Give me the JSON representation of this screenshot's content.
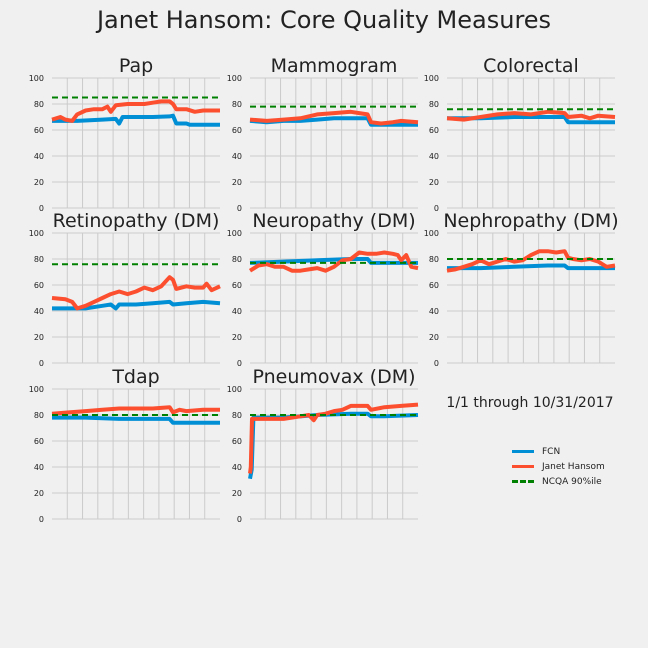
{
  "title": "Janet Hansom: Core Quality Measures",
  "date_range": "1/1 through 10/31/2017",
  "colors": {
    "fcn": "#008fd5",
    "provider": "#fc4f30",
    "ncqa": "#008000",
    "grid": "#cbcbcb",
    "bg": "#f0f0f0"
  },
  "legend": [
    {
      "label": "FCN",
      "color": "#008fd5",
      "style": "solid"
    },
    {
      "label": "Janet Hansom",
      "color": "#fc4f30",
      "style": "solid"
    },
    {
      "label": "NCQA 90%ile",
      "color": "#008000",
      "style": "dashed"
    }
  ],
  "chart_data": [
    {
      "type": "line",
      "title": "Pap",
      "ylim": [
        0,
        100
      ],
      "yticks": [
        0,
        20,
        40,
        60,
        80,
        100
      ],
      "ncqa": 85,
      "series": [
        {
          "name": "FCN",
          "points": [
            [
              0,
              67
            ],
            [
              0.15,
              67
            ],
            [
              0.3,
              68
            ],
            [
              0.38,
              68.5
            ],
            [
              0.4,
              65
            ],
            [
              0.42,
              70
            ],
            [
              0.5,
              70
            ],
            [
              0.6,
              70
            ],
            [
              0.7,
              70.5
            ],
            [
              0.72,
              71
            ],
            [
              0.74,
              65
            ],
            [
              0.8,
              65
            ],
            [
              0.82,
              64
            ],
            [
              1,
              64
            ]
          ]
        },
        {
          "name": "Janet Hansom",
          "points": [
            [
              0,
              68
            ],
            [
              0.05,
              70
            ],
            [
              0.08,
              68
            ],
            [
              0.12,
              67
            ],
            [
              0.15,
              72
            ],
            [
              0.2,
              75
            ],
            [
              0.25,
              76
            ],
            [
              0.3,
              76
            ],
            [
              0.33,
              78
            ],
            [
              0.35,
              74
            ],
            [
              0.38,
              79
            ],
            [
              0.45,
              80
            ],
            [
              0.55,
              80
            ],
            [
              0.6,
              81
            ],
            [
              0.65,
              82
            ],
            [
              0.7,
              82
            ],
            [
              0.72,
              80
            ],
            [
              0.74,
              76
            ],
            [
              0.8,
              76
            ],
            [
              0.85,
              74
            ],
            [
              0.9,
              75
            ],
            [
              1,
              75
            ]
          ]
        }
      ]
    },
    {
      "type": "line",
      "title": "Mammogram",
      "ylim": [
        0,
        100
      ],
      "yticks": [
        0,
        20,
        40,
        60,
        80,
        100
      ],
      "ncqa": 78,
      "series": [
        {
          "name": "FCN",
          "points": [
            [
              0,
              67
            ],
            [
              0.1,
              66
            ],
            [
              0.2,
              67
            ],
            [
              0.3,
              67
            ],
            [
              0.4,
              68
            ],
            [
              0.5,
              69
            ],
            [
              0.6,
              69
            ],
            [
              0.7,
              69
            ],
            [
              0.72,
              64
            ],
            [
              0.8,
              64
            ],
            [
              1,
              64
            ]
          ]
        },
        {
          "name": "Janet Hansom",
          "points": [
            [
              0,
              68
            ],
            [
              0.1,
              67
            ],
            [
              0.2,
              68
            ],
            [
              0.3,
              69
            ],
            [
              0.4,
              72
            ],
            [
              0.5,
              73
            ],
            [
              0.6,
              74
            ],
            [
              0.65,
              73
            ],
            [
              0.7,
              72
            ],
            [
              0.72,
              66
            ],
            [
              0.78,
              65
            ],
            [
              0.85,
              66
            ],
            [
              0.9,
              67
            ],
            [
              1,
              66
            ]
          ]
        }
      ]
    },
    {
      "type": "line",
      "title": "Colorectal",
      "ylim": [
        0,
        100
      ],
      "yticks": [
        0,
        20,
        40,
        60,
        80,
        100
      ],
      "ncqa": 76,
      "series": [
        {
          "name": "FCN",
          "points": [
            [
              0,
              69
            ],
            [
              0.2,
              69
            ],
            [
              0.4,
              70
            ],
            [
              0.6,
              70
            ],
            [
              0.7,
              70
            ],
            [
              0.72,
              66
            ],
            [
              0.8,
              66
            ],
            [
              1,
              66
            ]
          ]
        },
        {
          "name": "Janet Hansom",
          "points": [
            [
              0,
              69
            ],
            [
              0.1,
              68
            ],
            [
              0.2,
              70
            ],
            [
              0.3,
              72
            ],
            [
              0.4,
              73
            ],
            [
              0.5,
              72
            ],
            [
              0.6,
              74
            ],
            [
              0.7,
              73
            ],
            [
              0.72,
              70
            ],
            [
              0.8,
              71
            ],
            [
              0.85,
              69
            ],
            [
              0.9,
              71
            ],
            [
              1,
              70
            ]
          ]
        }
      ]
    },
    {
      "type": "line",
      "title": "Retinopathy (DM)",
      "ylim": [
        0,
        100
      ],
      "yticks": [
        0,
        20,
        40,
        60,
        80,
        100
      ],
      "ncqa": 76,
      "series": [
        {
          "name": "FCN",
          "points": [
            [
              0,
              42
            ],
            [
              0.1,
              42
            ],
            [
              0.2,
              42
            ],
            [
              0.3,
              44
            ],
            [
              0.35,
              45
            ],
            [
              0.38,
              42
            ],
            [
              0.4,
              45
            ],
            [
              0.5,
              45
            ],
            [
              0.6,
              46
            ],
            [
              0.7,
              47
            ],
            [
              0.72,
              45
            ],
            [
              0.8,
              46
            ],
            [
              0.9,
              47
            ],
            [
              1,
              46
            ]
          ]
        },
        {
          "name": "Janet Hansom",
          "points": [
            [
              0,
              50
            ],
            [
              0.08,
              49
            ],
            [
              0.12,
              47
            ],
            [
              0.15,
              42
            ],
            [
              0.2,
              44
            ],
            [
              0.25,
              47
            ],
            [
              0.3,
              50
            ],
            [
              0.35,
              53
            ],
            [
              0.4,
              55
            ],
            [
              0.45,
              53
            ],
            [
              0.5,
              55
            ],
            [
              0.55,
              58
            ],
            [
              0.6,
              56
            ],
            [
              0.65,
              59
            ],
            [
              0.7,
              66
            ],
            [
              0.72,
              64
            ],
            [
              0.74,
              57
            ],
            [
              0.8,
              59
            ],
            [
              0.85,
              58
            ],
            [
              0.9,
              58
            ],
            [
              0.92,
              61
            ],
            [
              0.95,
              56
            ],
            [
              1,
              59
            ]
          ]
        }
      ]
    },
    {
      "type": "line",
      "title": "Neuropathy (DM)",
      "ylim": [
        0,
        100
      ],
      "yticks": [
        0,
        20,
        40,
        60,
        80,
        100
      ],
      "ncqa": 77,
      "series": [
        {
          "name": "FCN",
          "points": [
            [
              0,
              77
            ],
            [
              0.2,
              78
            ],
            [
              0.4,
              79
            ],
            [
              0.6,
              80
            ],
            [
              0.7,
              80
            ],
            [
              0.72,
              77
            ],
            [
              0.8,
              77
            ],
            [
              1,
              77
            ]
          ]
        },
        {
          "name": "Janet Hansom",
          "points": [
            [
              0,
              71
            ],
            [
              0.05,
              75
            ],
            [
              0.1,
              76
            ],
            [
              0.15,
              74
            ],
            [
              0.2,
              74
            ],
            [
              0.25,
              71
            ],
            [
              0.3,
              71
            ],
            [
              0.35,
              72
            ],
            [
              0.4,
              73
            ],
            [
              0.45,
              71
            ],
            [
              0.5,
              74
            ],
            [
              0.55,
              79
            ],
            [
              0.6,
              80
            ],
            [
              0.65,
              85
            ],
            [
              0.7,
              84
            ],
            [
              0.75,
              84
            ],
            [
              0.8,
              85
            ],
            [
              0.85,
              84
            ],
            [
              0.88,
              83
            ],
            [
              0.9,
              79
            ],
            [
              0.93,
              83
            ],
            [
              0.96,
              74
            ],
            [
              1,
              73
            ]
          ]
        }
      ]
    },
    {
      "type": "line",
      "title": "Nephropathy (DM)",
      "ylim": [
        0,
        100
      ],
      "yticks": [
        0,
        20,
        40,
        60,
        80,
        100
      ],
      "ncqa": 80,
      "series": [
        {
          "name": "FCN",
          "points": [
            [
              0,
              73
            ],
            [
              0.2,
              73
            ],
            [
              0.4,
              74
            ],
            [
              0.6,
              75
            ],
            [
              0.7,
              75
            ],
            [
              0.72,
              73
            ],
            [
              0.8,
              73
            ],
            [
              1,
              73
            ]
          ]
        },
        {
          "name": "Janet Hansom",
          "points": [
            [
              0,
              71
            ],
            [
              0.05,
              72
            ],
            [
              0.1,
              74
            ],
            [
              0.15,
              76
            ],
            [
              0.2,
              79
            ],
            [
              0.25,
              76
            ],
            [
              0.3,
              78
            ],
            [
              0.35,
              80
            ],
            [
              0.4,
              78
            ],
            [
              0.45,
              79
            ],
            [
              0.5,
              83
            ],
            [
              0.55,
              86
            ],
            [
              0.6,
              86
            ],
            [
              0.65,
              85
            ],
            [
              0.7,
              86
            ],
            [
              0.72,
              81
            ],
            [
              0.75,
              80
            ],
            [
              0.8,
              79
            ],
            [
              0.85,
              80
            ],
            [
              0.9,
              78
            ],
            [
              0.95,
              74
            ],
            [
              1,
              75
            ]
          ]
        }
      ]
    },
    {
      "type": "line",
      "title": "Tdap",
      "ylim": [
        0,
        100
      ],
      "yticks": [
        0,
        20,
        40,
        60,
        80,
        100
      ],
      "ncqa": 80,
      "series": [
        {
          "name": "FCN",
          "points": [
            [
              0,
              78
            ],
            [
              0.2,
              78
            ],
            [
              0.4,
              77
            ],
            [
              0.6,
              77
            ],
            [
              0.7,
              77
            ],
            [
              0.72,
              74
            ],
            [
              0.8,
              74
            ],
            [
              1,
              74
            ]
          ]
        },
        {
          "name": "Janet Hansom",
          "points": [
            [
              0,
              81
            ],
            [
              0.1,
              82
            ],
            [
              0.2,
              83
            ],
            [
              0.3,
              84
            ],
            [
              0.4,
              85
            ],
            [
              0.5,
              85
            ],
            [
              0.6,
              85
            ],
            [
              0.7,
              86
            ],
            [
              0.72,
              82
            ],
            [
              0.76,
              84
            ],
            [
              0.8,
              83
            ],
            [
              0.9,
              84
            ],
            [
              1,
              84
            ]
          ]
        }
      ]
    },
    {
      "type": "line",
      "title": "Pneumovax (DM)",
      "ylim": [
        0,
        100
      ],
      "yticks": [
        0,
        20,
        40,
        60,
        80,
        100
      ],
      "ncqa": 80,
      "series": [
        {
          "name": "FCN",
          "points": [
            [
              0,
              31
            ],
            [
              0.01,
              38
            ],
            [
              0.02,
              78
            ],
            [
              0.2,
              78
            ],
            [
              0.4,
              80
            ],
            [
              0.6,
              81
            ],
            [
              0.7,
              81
            ],
            [
              0.72,
              79
            ],
            [
              0.8,
              79
            ],
            [
              1,
              80
            ]
          ]
        },
        {
          "name": "Janet Hansom",
          "points": [
            [
              0,
              35
            ],
            [
              0.005,
              40
            ],
            [
              0.012,
              77
            ],
            [
              0.2,
              77
            ],
            [
              0.3,
              79
            ],
            [
              0.35,
              80
            ],
            [
              0.38,
              76
            ],
            [
              0.4,
              80
            ],
            [
              0.45,
              81
            ],
            [
              0.5,
              83
            ],
            [
              0.55,
              84
            ],
            [
              0.6,
              87
            ],
            [
              0.7,
              87
            ],
            [
              0.72,
              84
            ],
            [
              0.8,
              86
            ],
            [
              0.9,
              87
            ],
            [
              1,
              88
            ]
          ]
        }
      ]
    }
  ]
}
